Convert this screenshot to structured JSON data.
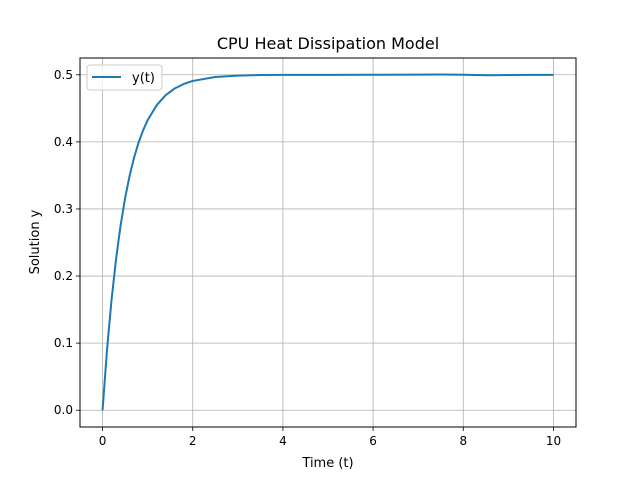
{
  "chart_data": {
    "type": "line",
    "title": "CPU Heat Dissipation Model",
    "xlabel": "Time (t)",
    "ylabel": "Solution y",
    "xlim": [
      -0.5,
      10.5
    ],
    "ylim": [
      -0.025,
      0.525
    ],
    "xticks": [
      0,
      2,
      4,
      6,
      8,
      10
    ],
    "xtick_labels": [
      "0",
      "2",
      "4",
      "6",
      "8",
      "10"
    ],
    "yticks": [
      0.0,
      0.1,
      0.2,
      0.3,
      0.4,
      0.5
    ],
    "ytick_labels": [
      "0.0",
      "0.1",
      "0.2",
      "0.3",
      "0.4",
      "0.5"
    ],
    "grid": true,
    "legend_position": "top-left",
    "series": [
      {
        "name": "y(t)",
        "color": "#1f77b4",
        "x": [
          0,
          0.1,
          0.2,
          0.3,
          0.4,
          0.5,
          0.6,
          0.7,
          0.8,
          0.9,
          1.0,
          1.2,
          1.4,
          1.6,
          1.8,
          2.0,
          2.5,
          3.0,
          3.5,
          4.0,
          5.0,
          6.0,
          7.0,
          7.5,
          8.0,
          8.6,
          9.0,
          9.5,
          10.0
        ],
        "y": [
          0.0,
          0.0906,
          0.1648,
          0.2256,
          0.2753,
          0.3161,
          0.3494,
          0.3767,
          0.3991,
          0.4174,
          0.4323,
          0.4546,
          0.4696,
          0.4796,
          0.4863,
          0.4908,
          0.4967,
          0.4988,
          0.4996,
          0.4998,
          0.4999,
          0.5,
          0.5002,
          0.5005,
          0.5001,
          0.4993,
          0.4997,
          0.4999,
          0.4998
        ]
      }
    ]
  }
}
